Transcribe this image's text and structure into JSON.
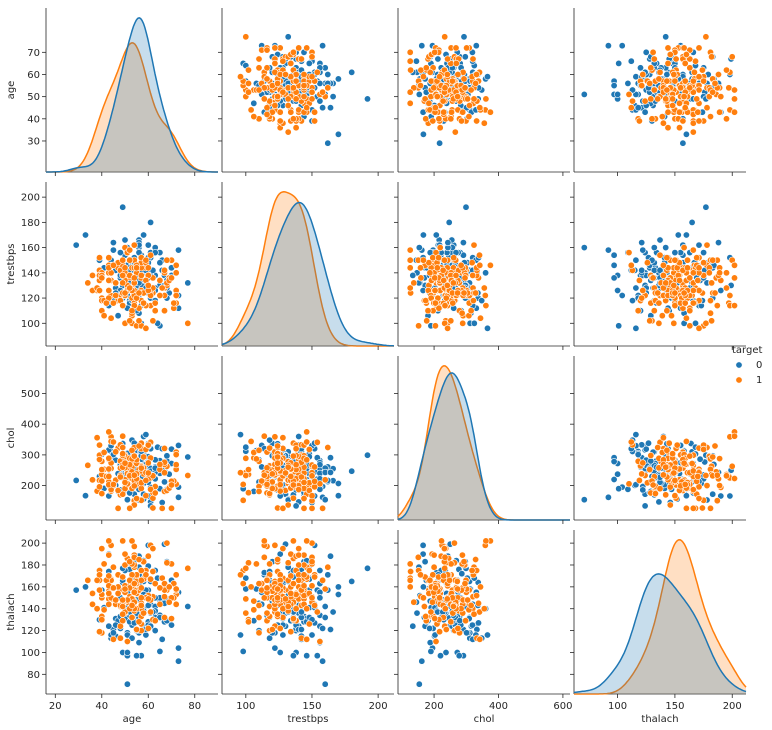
{
  "chart_data": {
    "type": "scatter",
    "kind": "pairplot",
    "variables": [
      "age",
      "trestbps",
      "chol",
      "thalach"
    ],
    "hue": "target",
    "legend": {
      "title": "target",
      "placement": "right",
      "entries": [
        "0",
        "1"
      ]
    },
    "colors": {
      "0": "#1f77b4",
      "1": "#ff7f0e"
    },
    "ticks": {
      "age": {
        "row": [
          "30",
          "40",
          "50",
          "60",
          "70"
        ],
        "col": [
          "20",
          "40",
          "60",
          "80"
        ]
      },
      "trestbps": {
        "row": [
          "100",
          "120",
          "140",
          "160",
          "180",
          "200"
        ],
        "col": [
          "100",
          "150",
          "200"
        ]
      },
      "chol": {
        "row": [
          "200",
          "300",
          "400",
          "500"
        ],
        "col": [
          "200",
          "400",
          "600"
        ]
      },
      "thalach": {
        "row": [
          "80",
          "100",
          "120",
          "140",
          "160",
          "180",
          "200"
        ],
        "col": [
          "50",
          "100",
          "150",
          "200"
        ]
      }
    },
    "ranges": {
      "age": [
        16,
        90
      ],
      "trestbps": [
        82,
        212
      ],
      "chol": [
        88,
        622
      ],
      "thalach": [
        62,
        212
      ]
    },
    "diagonal_kde": {
      "age": {
        "0": {
          "mean": 56.6,
          "sd": 7.9
        },
        "1": {
          "mean": 52.5,
          "sd": 9.5
        }
      },
      "trestbps": {
        "0": {
          "mean": 134.4,
          "sd": 18.7
        },
        "1": {
          "mean": 129.3,
          "sd": 16.2
        }
      },
      "chol": {
        "0": {
          "mean": 251.1,
          "sd": 49.5
        },
        "1": {
          "mean": 242.2,
          "sd": 53.6
        }
      },
      "thalach": {
        "0": {
          "mean": 139.1,
          "sd": 22.6
        },
        "1": {
          "mean": 158.5,
          "sd": 19.2
        }
      }
    },
    "samples": {
      "0": 138,
      "1": 165
    }
  }
}
